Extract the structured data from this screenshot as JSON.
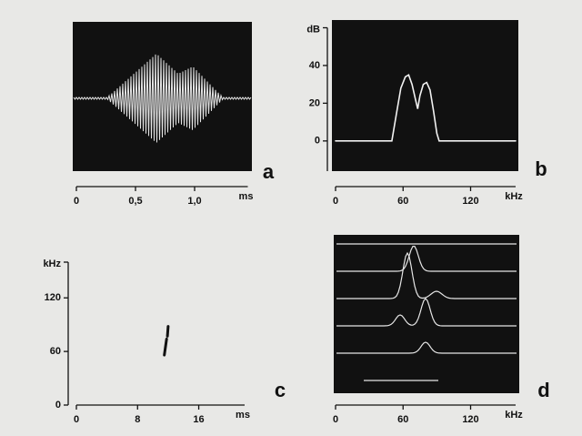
{
  "chart_data": [
    {
      "type": "oscillogram",
      "panel_label": "a",
      "x_unit": "ms",
      "xlim": [
        0,
        1.45
      ],
      "xticks": [
        0,
        {
          "value": 0.5,
          "label": "0,5"
        },
        {
          "value": 1,
          "label": "1,0"
        }
      ]
    },
    {
      "type": "line",
      "panel_label": "b",
      "x_unit": "kHz",
      "y_unit": "dB",
      "xlim": [
        0,
        160
      ],
      "xticks": [
        0,
        60,
        120
      ],
      "ylim": [
        -16,
        60
      ],
      "yticks": [
        0,
        20,
        40
      ],
      "x": [
        0,
        50,
        54,
        58,
        62,
        65,
        68,
        71,
        73,
        75,
        78,
        81,
        84,
        87,
        90,
        92,
        160
      ],
      "series": [
        {
          "color": "#f2f2f2",
          "values": [
            0,
            0,
            14,
            28,
            34,
            35,
            30,
            22,
            17,
            24,
            30,
            31,
            27,
            16,
            4,
            0,
            0
          ]
        }
      ]
    },
    {
      "type": "line",
      "panel_label": "c",
      "x_unit": "ms",
      "y_unit": "kHz",
      "xlim": [
        0,
        22
      ],
      "xticks": [
        0,
        8,
        16
      ],
      "ylim": [
        0,
        160
      ],
      "yticks": [
        0,
        60,
        120
      ],
      "x": [
        11.5,
        11.8,
        11.8,
        11.9,
        12.0
      ],
      "series": [
        {
          "color": "#111111",
          "values": [
            56,
            74,
            null,
            77,
            88
          ]
        }
      ]
    },
    {
      "type": "waterfall",
      "panel_label": "d",
      "x_unit": "kHz",
      "xlim": [
        0,
        160
      ],
      "xticks": [
        0,
        60,
        120
      ]
    }
  ]
}
